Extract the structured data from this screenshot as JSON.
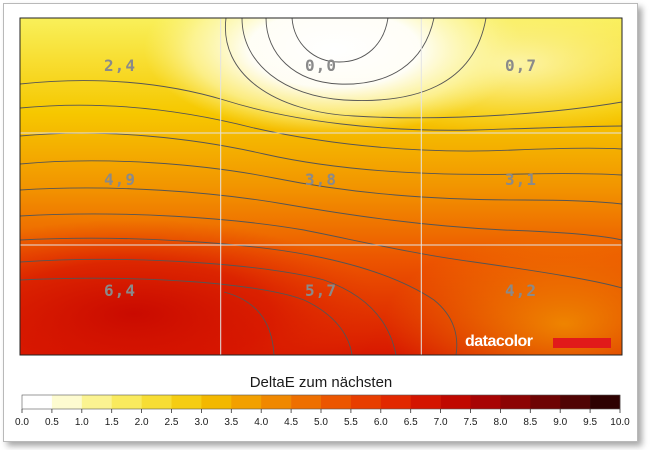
{
  "chart_data": {
    "type": "heatmap",
    "grid_rows": 3,
    "grid_cols": 3,
    "values": [
      [
        "2,4",
        "0,0",
        "0,7"
      ],
      [
        "4,9",
        "3,8",
        "3,1"
      ],
      [
        "6,4",
        "5,7",
        "4,2"
      ]
    ],
    "numeric_values": [
      [
        2.4,
        0.0,
        0.7
      ],
      [
        4.9,
        3.8,
        3.1
      ],
      [
        6.4,
        5.7,
        4.2
      ]
    ],
    "legend_title": "DeltaE zum nächsten",
    "legend_range": [
      0,
      10
    ],
    "legend_ticks": [
      "0.0",
      "0.5",
      "1.0",
      "1.5",
      "2.0",
      "2.5",
      "3.0",
      "3.5",
      "4.0",
      "4.5",
      "5.0",
      "5.5",
      "6.0",
      "6.5",
      "7.0",
      "7.5",
      "8.0",
      "8.5",
      "9.0",
      "9.5",
      "10.0"
    ],
    "legend_colors": [
      "#ffffff",
      "#fdfbd0",
      "#fbf391",
      "#f9ea5e",
      "#f7dd34",
      "#f5cd12",
      "#f3b800",
      "#f2a000",
      "#f08800",
      "#ee6f00",
      "#ec5600",
      "#e83e00",
      "#e22800",
      "#d41500",
      "#c00800",
      "#a80404",
      "#8c0404",
      "#6e0404",
      "#500404",
      "#2e0202"
    ]
  },
  "brand": {
    "name": "datacolor",
    "bar_color": "#e11a1a"
  },
  "colors": {
    "contour": "#555555",
    "grid": "#e3e3e3"
  }
}
